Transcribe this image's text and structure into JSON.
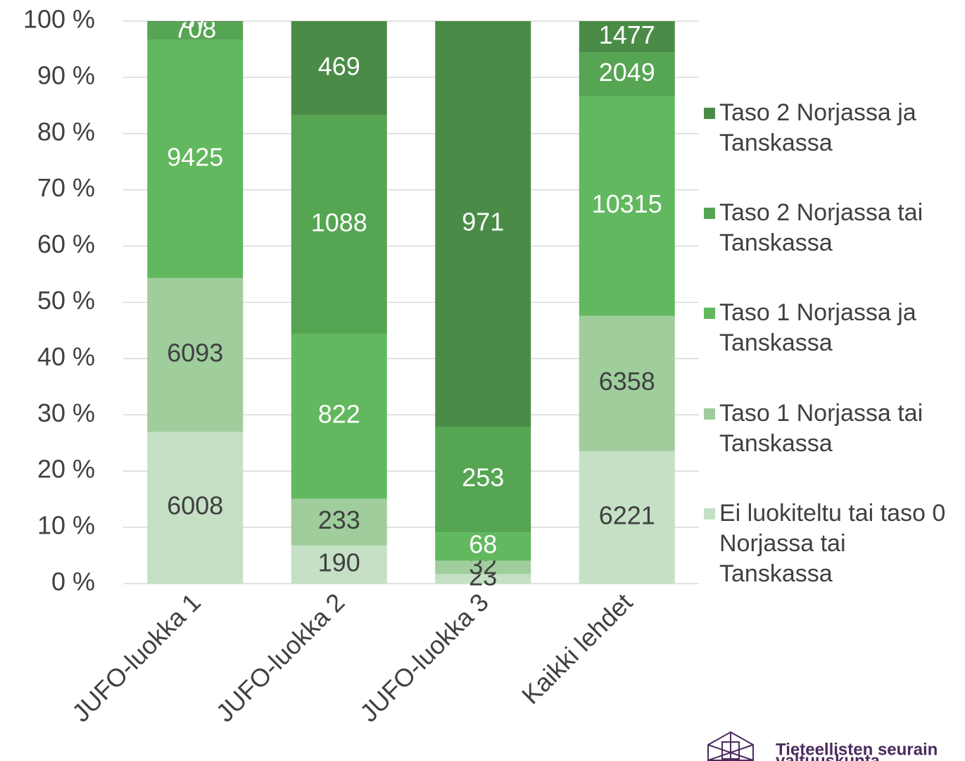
{
  "chart_data": {
    "type": "bar",
    "stacking": "percent",
    "categories": [
      "JUFO-luokka 1",
      "JUFO-luokka 2",
      "JUFO-luokka 3",
      "Kaikki lehdet"
    ],
    "series": [
      {
        "name": "Ei luokiteltu tai taso 0 Norjassa tai Tanskassa",
        "color": "#c5e0c5",
        "values": [
          6008,
          190,
          23,
          6221
        ]
      },
      {
        "name": "Taso 1 Norjassa tai Tanskassa",
        "color": "#9fcd9c",
        "values": [
          6093,
          233,
          32,
          6358
        ]
      },
      {
        "name": "Taso 1 Norjassa ja Tanskassa",
        "color": "#62b85f",
        "values": [
          9425,
          822,
          68,
          10315
        ]
      },
      {
        "name": "Taso 2 Norjassa tai Tanskassa",
        "color": "#55a552",
        "values": [
          708,
          1088,
          253,
          2049
        ]
      },
      {
        "name": "Taso 2 Norjassa ja Tanskassa",
        "color": "#4a8c47",
        "values": [
          37,
          469,
          971,
          1477
        ]
      }
    ],
    "ylim": [
      0,
      100
    ],
    "yticks": [
      {
        "value": 0,
        "label": "0 %"
      },
      {
        "value": 10,
        "label": "10 %"
      },
      {
        "value": 20,
        "label": "20 %"
      },
      {
        "value": 30,
        "label": "30 %"
      },
      {
        "value": 40,
        "label": "40 %"
      },
      {
        "value": 50,
        "label": "50 %"
      },
      {
        "value": 60,
        "label": "60 %"
      },
      {
        "value": 70,
        "label": "70 %"
      },
      {
        "value": 80,
        "label": "80 %"
      },
      {
        "value": 90,
        "label": "90 %"
      },
      {
        "value": 100,
        "label": "100 %"
      }
    ],
    "grid": true,
    "legend": "right"
  },
  "logo": {
    "lines": [
      "Tieteellisten seurain",
      "valtuuskunta"
    ]
  }
}
